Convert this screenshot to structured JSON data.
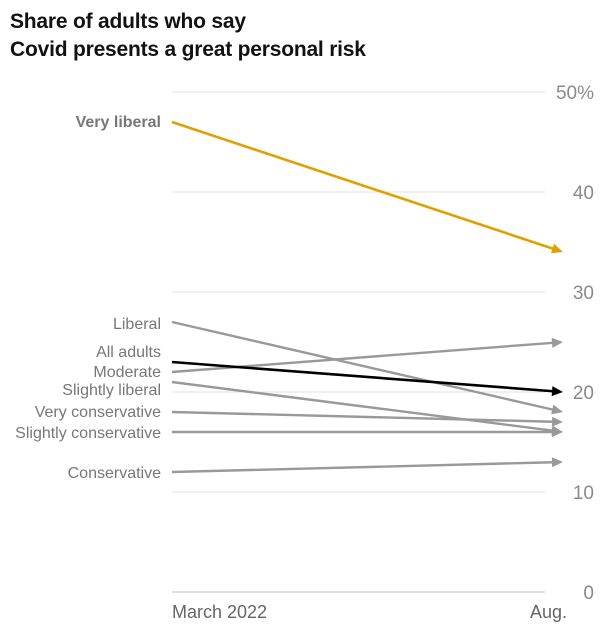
{
  "title_lines": [
    "Share of adults who say",
    "Covid presents a great personal risk"
  ],
  "chart_data": {
    "type": "line",
    "title": "Share of adults who say Covid presents a great personal risk",
    "categories": [
      "March 2022",
      "Aug."
    ],
    "y_ticks": [
      "0",
      "10",
      "20",
      "30",
      "40",
      "50%"
    ],
    "y_tick_values": [
      0,
      10,
      20,
      30,
      40,
      50
    ],
    "ylim": [
      0,
      50
    ],
    "grid": true,
    "series": [
      {
        "name": "Very liberal",
        "values": [
          47,
          34
        ],
        "color": "#e0a100",
        "highlight": true
      },
      {
        "name": "Liberal",
        "values": [
          27,
          18
        ],
        "color": "#999999"
      },
      {
        "name": "All adults",
        "values": [
          23,
          20
        ],
        "color": "#000000",
        "highlight": true
      },
      {
        "name": "Moderate",
        "values": [
          22,
          25
        ],
        "color": "#999999"
      },
      {
        "name": "Slightly liberal",
        "values": [
          21,
          16
        ],
        "color": "#999999"
      },
      {
        "name": "Very conservative",
        "values": [
          18,
          17
        ],
        "color": "#999999"
      },
      {
        "name": "Slightly conservative",
        "values": [
          16,
          16
        ],
        "color": "#999999"
      },
      {
        "name": "Conservative",
        "values": [
          12,
          13
        ],
        "color": "#999999"
      }
    ]
  }
}
